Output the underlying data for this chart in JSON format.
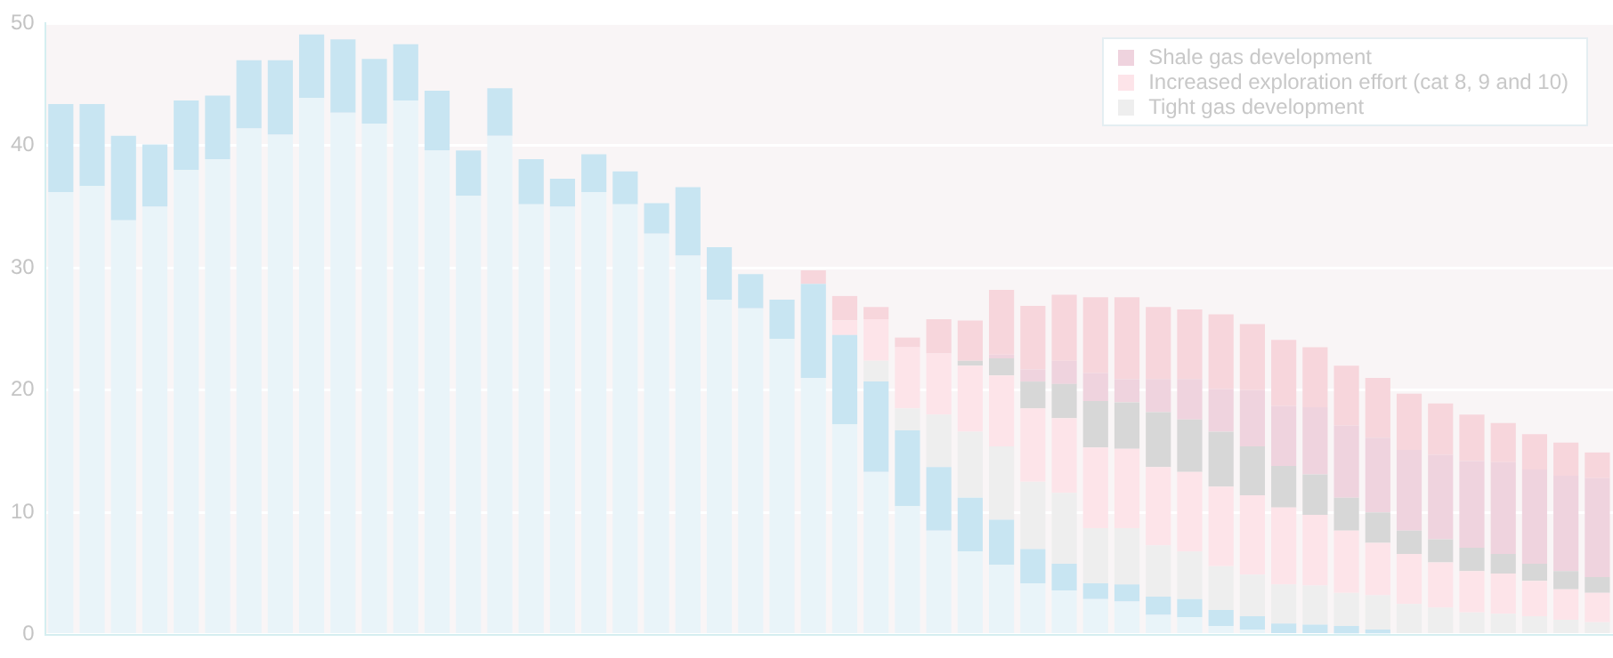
{
  "chart_data": {
    "type": "bar",
    "stacked": true,
    "categories": [
      null,
      null,
      null,
      null,
      null,
      null,
      null,
      null,
      null,
      null,
      null,
      null,
      null,
      null,
      null,
      null,
      null,
      null,
      null,
      null,
      null,
      null,
      null,
      null,
      null,
      null,
      null,
      null,
      null,
      null,
      null,
      null,
      null,
      null,
      null,
      null,
      null,
      null,
      null,
      null,
      null,
      null,
      null,
      null,
      null,
      null,
      null,
      null,
      null,
      null
    ],
    "series": [
      {
        "color": "#e9f4f9",
        "values": [
          36.2,
          36.7,
          33.9,
          35.0,
          38.0,
          38.9,
          41.4,
          40.9,
          43.9,
          42.7,
          41.8,
          43.7,
          39.6,
          35.9,
          40.8,
          35.2,
          35.0,
          36.2,
          35.2,
          32.8,
          31.0,
          27.4,
          26.7,
          24.2,
          21.0,
          17.2,
          13.3,
          10.5,
          8.5,
          6.8,
          5.7,
          4.2,
          3.6,
          2.9,
          2.7,
          1.6,
          1.4,
          0.7,
          0.4,
          null,
          null,
          0.1,
          0.1,
          null,
          null,
          null,
          null,
          null,
          null,
          null
        ]
      },
      {
        "color": "#c8e5f2",
        "values": [
          7.2,
          6.7,
          6.9,
          5.1,
          5.7,
          5.2,
          5.6,
          6.1,
          5.2,
          6.0,
          5.3,
          4.6,
          4.9,
          3.7,
          3.9,
          3.7,
          2.3,
          3.1,
          2.7,
          2.5,
          5.6,
          4.3,
          2.8,
          3.2,
          7.7,
          7.3,
          7.4,
          6.2,
          5.2,
          4.4,
          3.7,
          2.8,
          2.2,
          1.3,
          1.4,
          1.5,
          1.5,
          1.3,
          1.1,
          0.9,
          0.8,
          0.6,
          0.3,
          null,
          null,
          null,
          null,
          null,
          null,
          null
        ]
      },
      {
        "name": "Tight gas development",
        "color": "#eeeeee",
        "values": [
          null,
          null,
          null,
          null,
          null,
          null,
          null,
          null,
          null,
          null,
          null,
          null,
          null,
          null,
          null,
          null,
          null,
          null,
          null,
          null,
          null,
          null,
          null,
          null,
          null,
          null,
          1.7,
          1.8,
          4.3,
          5.4,
          6.0,
          5.5,
          5.8,
          4.5,
          4.6,
          4.2,
          3.9,
          3.6,
          3.4,
          3.2,
          3.2,
          2.7,
          2.8,
          2.5,
          2.2,
          1.8,
          1.7,
          1.5,
          1.2,
          1.0
        ]
      },
      {
        "name": "Increased exploration effort (cat 8, 9 and 10)",
        "color": "#fde4e9",
        "values": [
          null,
          null,
          null,
          null,
          null,
          null,
          null,
          null,
          null,
          null,
          null,
          null,
          null,
          null,
          null,
          null,
          null,
          null,
          null,
          null,
          null,
          null,
          null,
          null,
          null,
          1.2,
          3.4,
          5.0,
          5.0,
          5.4,
          5.8,
          6.0,
          6.1,
          6.6,
          6.5,
          6.4,
          6.5,
          6.5,
          6.5,
          6.3,
          5.8,
          5.1,
          4.3,
          4.1,
          3.7,
          3.4,
          3.3,
          2.9,
          2.5,
          2.4
        ]
      },
      {
        "color": "#d7d7d7",
        "values": [
          null,
          null,
          null,
          null,
          null,
          null,
          null,
          null,
          null,
          null,
          null,
          null,
          null,
          null,
          null,
          null,
          null,
          null,
          null,
          null,
          null,
          null,
          null,
          null,
          null,
          null,
          null,
          null,
          null,
          0.4,
          1.4,
          2.2,
          2.8,
          3.8,
          3.8,
          4.5,
          4.3,
          4.5,
          4.0,
          3.4,
          3.3,
          2.7,
          2.5,
          1.9,
          1.9,
          1.9,
          1.6,
          1.4,
          1.5,
          1.3
        ]
      },
      {
        "name": "Shale gas development",
        "color": "#efd3de",
        "values": [
          null,
          null,
          null,
          null,
          null,
          null,
          null,
          null,
          null,
          null,
          null,
          null,
          null,
          null,
          null,
          null,
          null,
          null,
          null,
          null,
          null,
          null,
          null,
          null,
          null,
          null,
          null,
          null,
          null,
          null,
          0.3,
          1.0,
          1.9,
          2.3,
          1.9,
          2.7,
          3.3,
          3.5,
          4.6,
          4.9,
          5.5,
          5.9,
          6.1,
          6.6,
          6.9,
          7.1,
          7.5,
          7.7,
          7.8,
          8.1
        ]
      },
      {
        "color": "#f7d6dc",
        "values": [
          null,
          null,
          null,
          null,
          null,
          null,
          null,
          null,
          null,
          null,
          null,
          null,
          null,
          null,
          null,
          null,
          null,
          null,
          null,
          null,
          null,
          null,
          null,
          null,
          1.1,
          2.0,
          1.0,
          0.8,
          2.8,
          3.3,
          5.3,
          5.2,
          5.4,
          6.2,
          6.7,
          5.9,
          5.7,
          6.1,
          5.4,
          5.4,
          4.9,
          4.9,
          4.9,
          4.6,
          4.2,
          3.8,
          3.2,
          2.9,
          2.7,
          2.1
        ]
      }
    ],
    "ylim": [
      0,
      50
    ],
    "yticks": [
      0,
      10,
      20,
      30,
      40,
      50
    ],
    "grid": "y",
    "legend": "top right",
    "tick_labels": "y"
  }
}
